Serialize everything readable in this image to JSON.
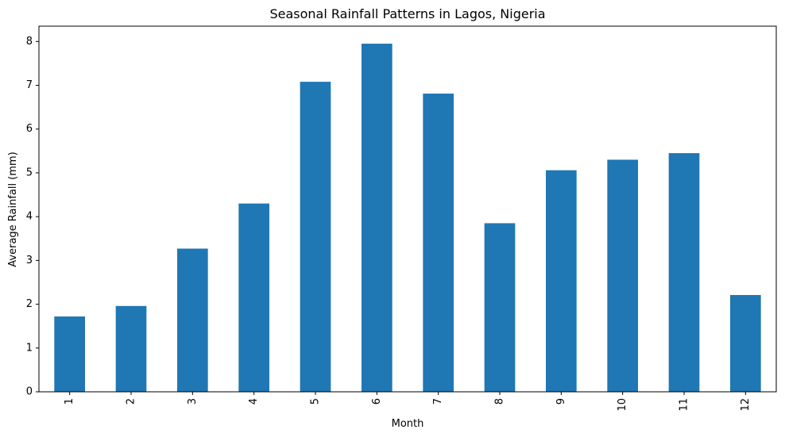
{
  "chart_data": {
    "type": "bar",
    "title": "Seasonal Rainfall Patterns in Lagos, Nigeria",
    "xlabel": "Month",
    "ylabel": "Average Rainfall (mm)",
    "categories": [
      "1",
      "2",
      "3",
      "4",
      "5",
      "6",
      "7",
      "8",
      "9",
      "10",
      "11",
      "12"
    ],
    "values": [
      1.72,
      1.96,
      3.27,
      4.3,
      7.08,
      7.95,
      6.81,
      3.85,
      5.06,
      5.3,
      5.45,
      2.21
    ],
    "ylim": [
      0,
      8.35
    ],
    "yticks": [
      0,
      1,
      2,
      3,
      4,
      5,
      6,
      7,
      8
    ],
    "ytick_labels": [
      "0",
      "1",
      "2",
      "3",
      "4",
      "5",
      "6",
      "7",
      "8"
    ],
    "bar_color": "#1f77b4",
    "grid": false,
    "legend": "none"
  }
}
